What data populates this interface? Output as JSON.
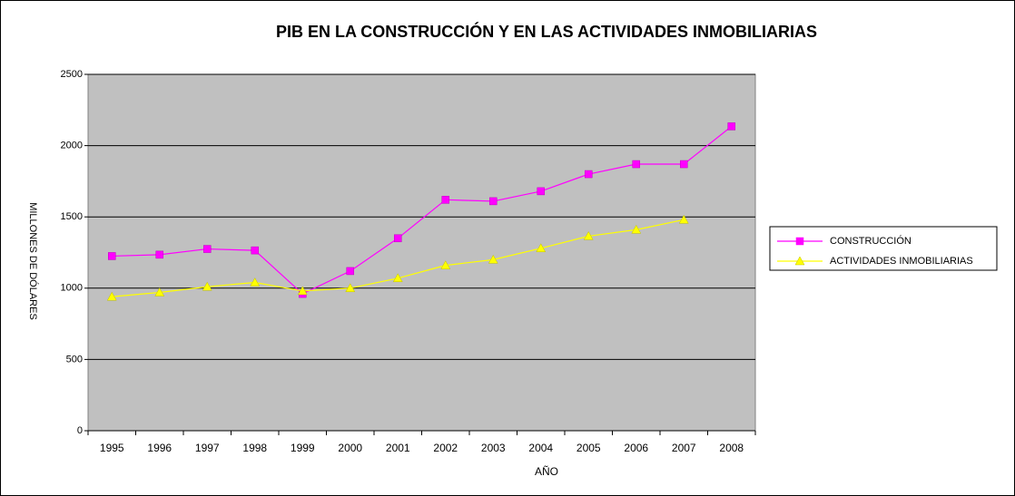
{
  "chart_data": {
    "type": "line",
    "title": "PIB EN LA CONSTRUCCIÓN Y EN LAS ACTIVIDADES INMOBILIARIAS",
    "x_label": "AÑO",
    "y_label": "MILLONES DE DÓLARES",
    "categories": [
      "1995",
      "1996",
      "1997",
      "1998",
      "1999",
      "2000",
      "2001",
      "2002",
      "2003",
      "2004",
      "2005",
      "2006",
      "2007",
      "2008"
    ],
    "series": [
      {
        "name": "CONSTRUCCIÓN",
        "color": "#ff00ff",
        "marker": "square",
        "values": [
          1225,
          1235,
          1275,
          1265,
          960,
          1120,
          1350,
          1620,
          1610,
          1680,
          1800,
          1870,
          1870,
          2135
        ]
      },
      {
        "name": "ACTIVIDADES INMOBILIARIAS",
        "color": "#ffff00",
        "marker": "triangle",
        "values": [
          940,
          970,
          1010,
          1040,
          980,
          1000,
          1070,
          1160,
          1200,
          1280,
          1365,
          1410,
          1480,
          null
        ]
      }
    ],
    "ylim": [
      0,
      2500
    ],
    "yticks": [
      0,
      500,
      1000,
      1500,
      2000,
      2500
    ],
    "grid": true,
    "legend": "right"
  }
}
